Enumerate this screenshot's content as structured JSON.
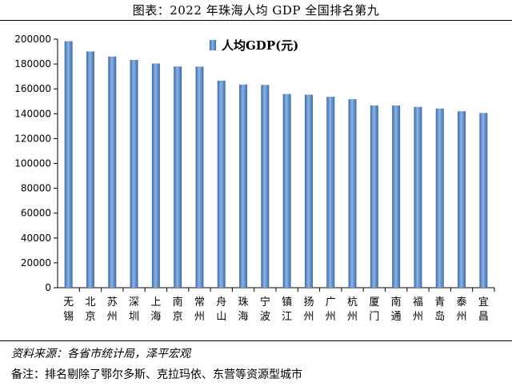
{
  "header": {
    "title": "图表：2022 年珠海人均 GDP 全国排名第九"
  },
  "footer": {
    "source": "资料来源：各省市统计局，泽平宏观",
    "note": "备注：排名剔除了鄂尔多斯、克拉玛依、东营等资源型城市"
  },
  "chart_data": {
    "type": "bar",
    "title": "",
    "xlabel": "",
    "ylabel": "",
    "categories": [
      "无锡",
      "北京",
      "苏州",
      "深圳",
      "上海",
      "南京",
      "常州",
      "舟山",
      "珠海",
      "宁波",
      "镇江",
      "扬州",
      "广州",
      "杭州",
      "厦门",
      "南通",
      "福州",
      "青岛",
      "泰州",
      "宜昌"
    ],
    "series": [
      {
        "name": "人均GDP(元)",
        "values": [
          198400,
          190100,
          186000,
          183300,
          180400,
          178000,
          177900,
          166600,
          163500,
          163200,
          155900,
          155300,
          153600,
          151700,
          146600,
          146600,
          145500,
          144200,
          142000,
          140600
        ],
        "color": "#4F81BD"
      }
    ],
    "ylim": [
      0,
      200000
    ],
    "yticks": [
      0,
      20000,
      40000,
      60000,
      80000,
      100000,
      120000,
      140000,
      160000,
      180000,
      200000
    ],
    "grid": false,
    "legend": "top-left"
  }
}
